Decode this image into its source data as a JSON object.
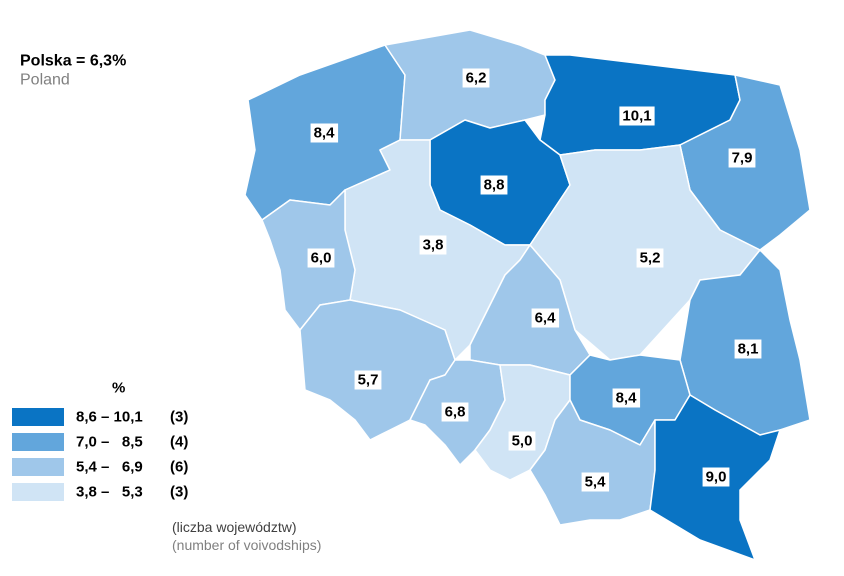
{
  "header": {
    "title": "Polska = 6,3%",
    "subtitle": "Poland"
  },
  "regions": [
    {
      "label": "8,4",
      "color": "#62a6dc"
    },
    {
      "label": "6,2",
      "color": "#9fc7ea"
    },
    {
      "label": "10,1",
      "color": "#0a74c4"
    },
    {
      "label": "7,9",
      "color": "#62a6dc"
    },
    {
      "label": "8,8",
      "color": "#0a74c4"
    },
    {
      "label": "3,8",
      "color": "#d0e4f5"
    },
    {
      "label": "6,0",
      "color": "#9fc7ea"
    },
    {
      "label": "5,2",
      "color": "#d0e4f5"
    },
    {
      "label": "6,4",
      "color": "#9fc7ea"
    },
    {
      "label": "8,1",
      "color": "#62a6dc"
    },
    {
      "label": "5,7",
      "color": "#9fc7ea"
    },
    {
      "label": "6,8",
      "color": "#9fc7ea"
    },
    {
      "label": "5,0",
      "color": "#d0e4f5"
    },
    {
      "label": "8,4",
      "color": "#62a6dc"
    },
    {
      "label": "5,4",
      "color": "#9fc7ea"
    },
    {
      "label": "9,0",
      "color": "#0a74c4"
    }
  ],
  "legend": {
    "title": "%",
    "items": [
      {
        "range": "8,6 – 10,1",
        "count": "(3)",
        "color": "#0a74c4"
      },
      {
        "range": "7,0 –   8,5",
        "count": "(4)",
        "color": "#62a6dc"
      },
      {
        "range": "5,4 –   6,9",
        "count": "(6)",
        "color": "#9fc7ea"
      },
      {
        "range": "3,8 –   5,3",
        "count": "(3)",
        "color": "#d0e4f5"
      }
    ],
    "note": "(liczba województw)",
    "note_en": "(number of voivodships)"
  }
}
